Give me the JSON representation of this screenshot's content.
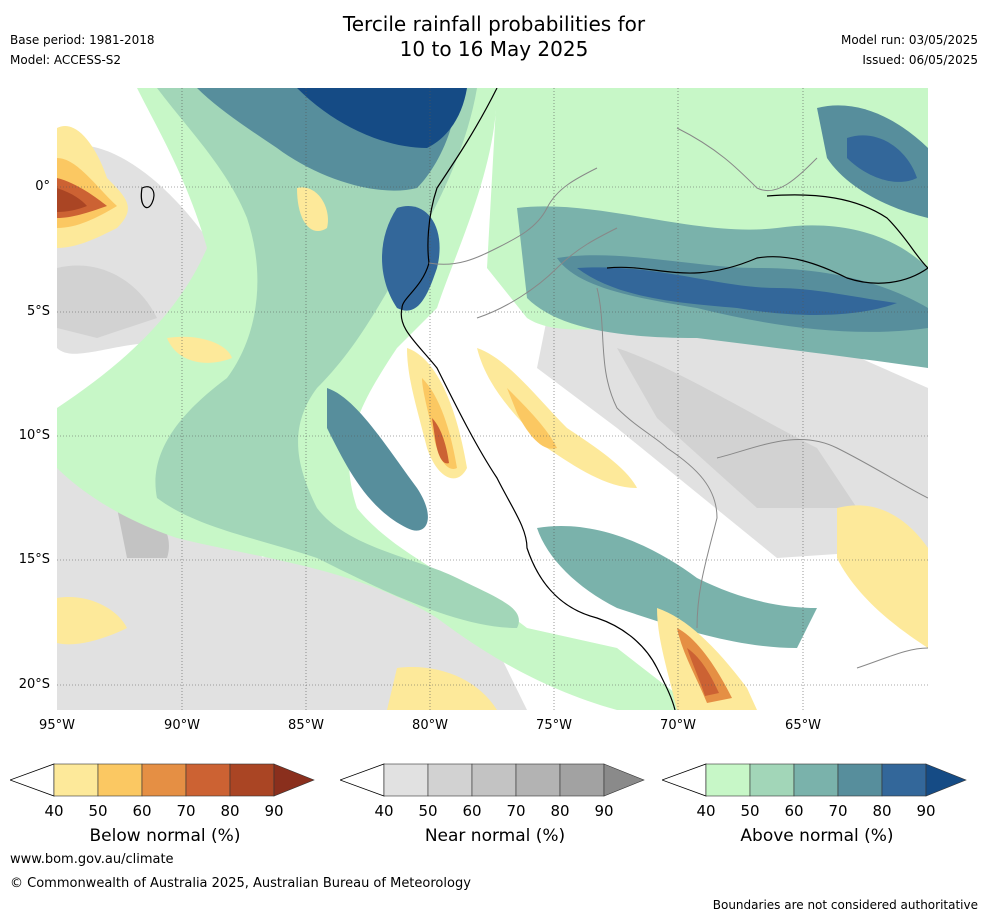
{
  "title_line1": "Tercile rainfall probabilities for",
  "title_line2": "10 to 16 May 2025",
  "base_period": "Base period: 1981-2018",
  "model": "Model: ACCESS-S2",
  "model_run": "Model run: 03/05/2025",
  "issued": "Issued: 06/05/2025",
  "lat_labels": [
    "0°",
    "5°S",
    "10°S",
    "15°S",
    "20°S"
  ],
  "lon_labels": [
    "95°W",
    "90°W",
    "85°W",
    "80°W",
    "75°W",
    "70°W",
    "65°W"
  ],
  "legends": {
    "below": {
      "title": "Below normal (%)",
      "ticks": [
        "40",
        "50",
        "60",
        "70",
        "80",
        "90"
      ],
      "colors": [
        "#fde99a",
        "#fbc862",
        "#e58f44",
        "#cc6233",
        "#aa4524",
        "#8a2f1d"
      ]
    },
    "near": {
      "title": "Near normal (%)",
      "ticks": [
        "40",
        "50",
        "60",
        "70",
        "80",
        "90"
      ],
      "colors": [
        "#e1e1e1",
        "#d2d2d2",
        "#c3c3c3",
        "#b3b3b3",
        "#a2a2a2",
        "#8a8a8a"
      ]
    },
    "above": {
      "title": "Above normal (%)",
      "ticks": [
        "40",
        "50",
        "60",
        "70",
        "80",
        "90"
      ],
      "colors": [
        "#c7f7c7",
        "#a2d6b8",
        "#7ab2ab",
        "#578e9c",
        "#33679a",
        "#154b85"
      ]
    }
  },
  "footer_url": "www.bom.gov.au/climate",
  "copyright": "© Commonwealth of Australia 2025, Australian Bureau of Meteorology",
  "disclaimer": "Boundaries are not considered authoritative"
}
